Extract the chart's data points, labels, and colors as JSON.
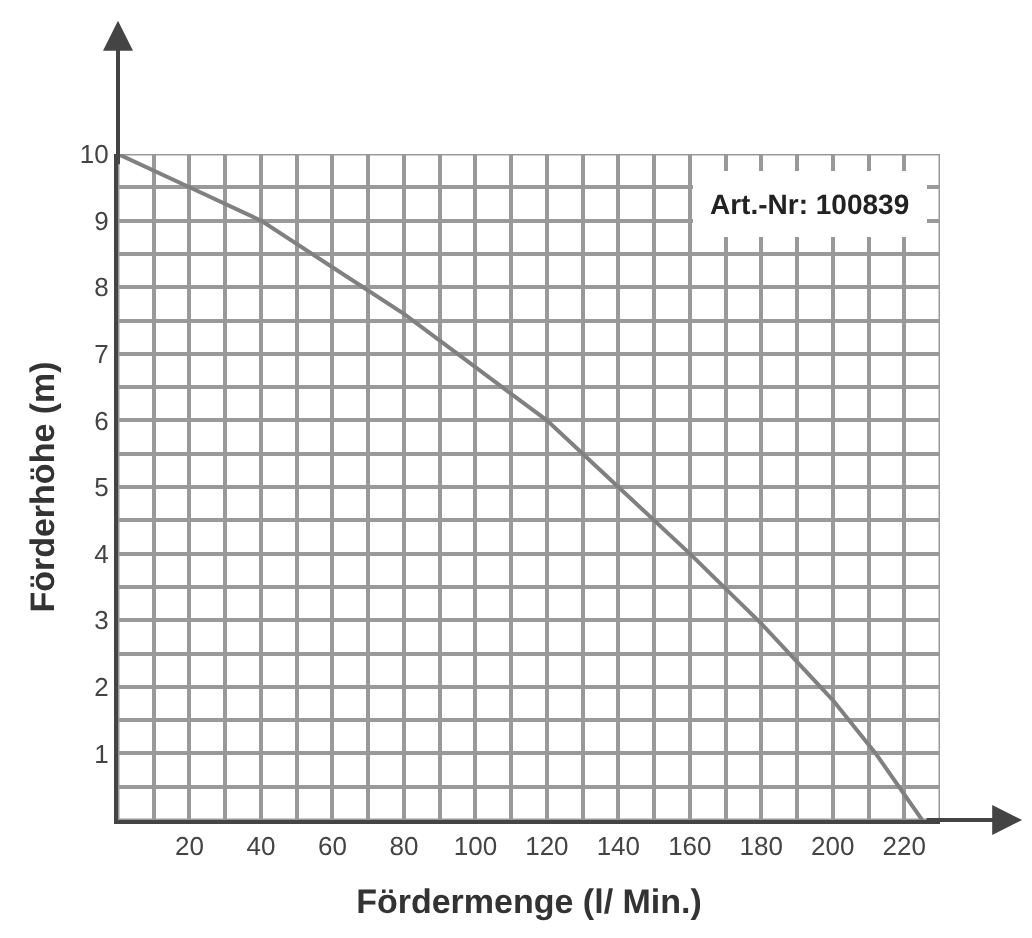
{
  "chart_data": {
    "type": "line",
    "xlabel": "Fördermenge (l/ Min.)",
    "ylabel": "Förderhöhe (m)",
    "annotations": [
      "Art.-Nr: 100839"
    ],
    "series": [
      {
        "color": "#808080",
        "x": [
          0,
          20,
          40,
          60,
          80,
          100,
          120,
          140,
          160,
          180,
          200,
          212,
          225
        ],
        "values": [
          10,
          9.5,
          9.0,
          8.3,
          7.6,
          6.8,
          6.0,
          5.0,
          4.0,
          2.95,
          1.8,
          1.0,
          0
        ]
      }
    ],
    "xlim": [
      0,
      230
    ],
    "xticks": [
      {
        "value": 0,
        "label": null
      },
      {
        "value": 10,
        "label": null
      },
      20,
      {
        "value": 30,
        "label": null
      },
      40,
      {
        "value": 50,
        "label": null
      },
      60,
      {
        "value": 70,
        "label": null
      },
      80,
      {
        "value": 90,
        "label": null
      },
      100,
      {
        "value": 110,
        "label": null
      },
      120,
      {
        "value": 130,
        "label": null
      },
      140,
      {
        "value": 150,
        "label": null
      },
      160,
      {
        "value": 170,
        "label": null
      },
      180,
      {
        "value": 190,
        "label": null
      },
      200,
      {
        "value": 210,
        "label": null
      },
      220,
      {
        "value": 230,
        "label": null
      }
    ],
    "ylim": [
      0,
      10
    ],
    "yticks": [
      {
        "value": 0,
        "label": null
      },
      {
        "value": 0.5,
        "label": null
      },
      1,
      {
        "value": 1.5,
        "label": null
      },
      2,
      {
        "value": 2.5,
        "label": null
      },
      3,
      {
        "value": 3.5,
        "label": null
      },
      4,
      {
        "value": 4.5,
        "label": null
      },
      5,
      {
        "value": 5.5,
        "label": null
      },
      6,
      {
        "value": 6.5,
        "label": null
      },
      7,
      {
        "value": 7.5,
        "label": null
      },
      8,
      {
        "value": 8.5,
        "label": null
      },
      9,
      {
        "value": 9.5,
        "label": null
      },
      10
    ],
    "grid": true,
    "legend": false,
    "marker": "none",
    "line_style": "solid"
  }
}
